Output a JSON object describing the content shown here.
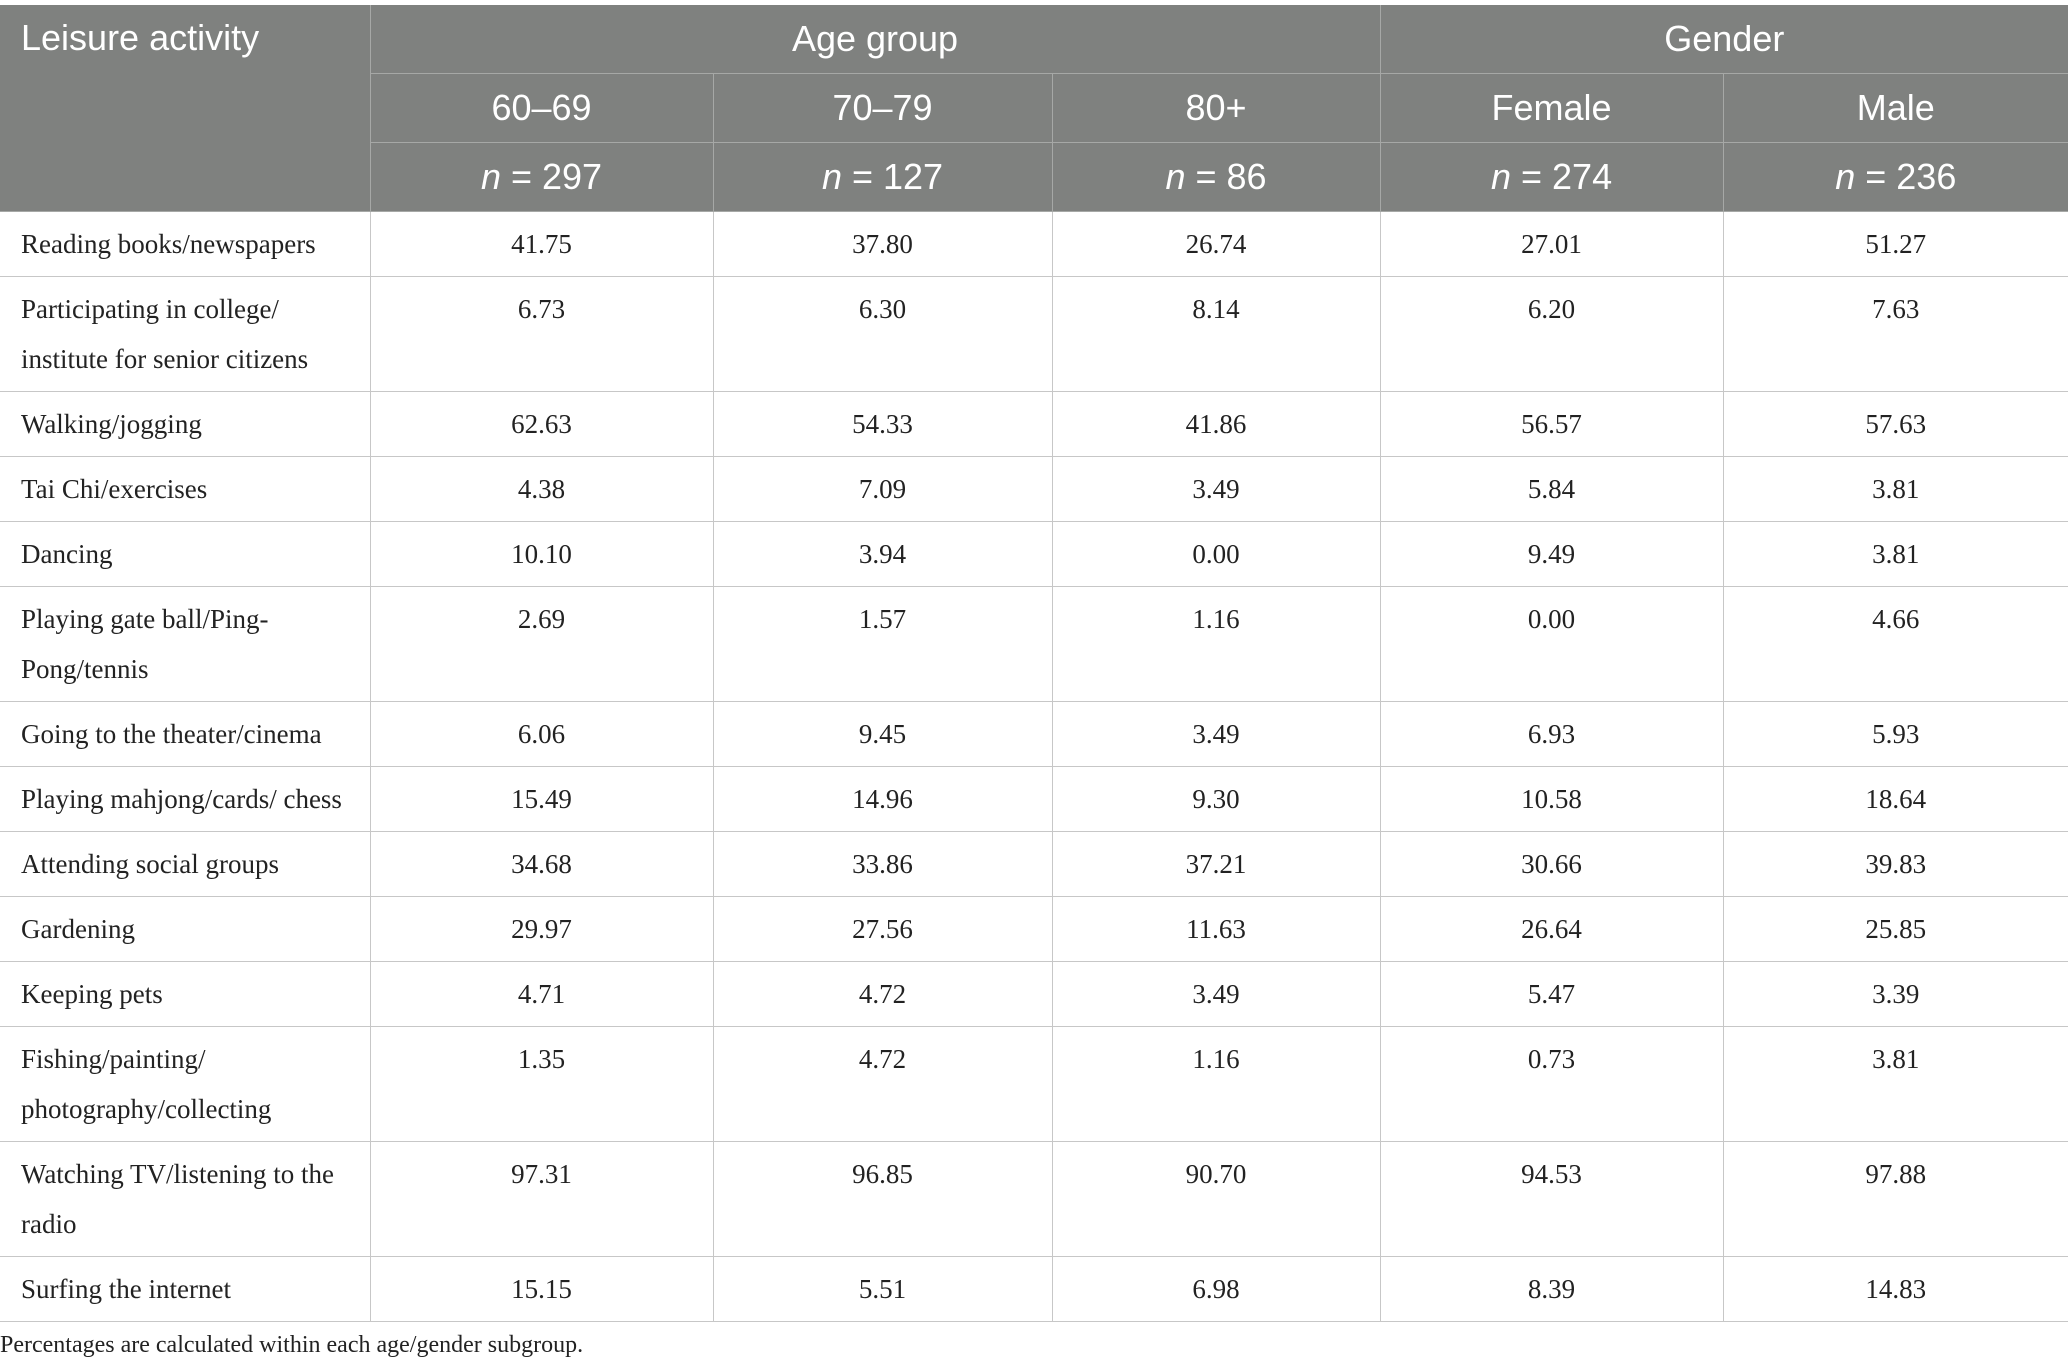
{
  "header": {
    "row_label": "Leisure activity",
    "group_age": "Age group",
    "group_gender": "Gender",
    "columns": [
      {
        "label": "60–69",
        "n_prefix": "n",
        "n_value": " = 297"
      },
      {
        "label": "70–79",
        "n_prefix": "n",
        "n_value": " = 127"
      },
      {
        "label": "80+",
        "n_prefix": "n",
        "n_value": " = 86"
      },
      {
        "label": "Female",
        "n_prefix": "n",
        "n_value": " = 274"
      },
      {
        "label": "Male",
        "n_prefix": "n",
        "n_value": " = 236"
      }
    ]
  },
  "rows": [
    {
      "activity": "Reading books/newspapers",
      "values": [
        "41.75",
        "37.80",
        "26.74",
        "27.01",
        "51.27"
      ]
    },
    {
      "activity": "Participating in college/ institute for senior citizens",
      "values": [
        "6.73",
        "6.30",
        "8.14",
        "6.20",
        "7.63"
      ]
    },
    {
      "activity": "Walking/jogging",
      "values": [
        "62.63",
        "54.33",
        "41.86",
        "56.57",
        "57.63"
      ]
    },
    {
      "activity": "Tai Chi/exercises",
      "values": [
        "4.38",
        "7.09",
        "3.49",
        "5.84",
        "3.81"
      ]
    },
    {
      "activity": "Dancing",
      "values": [
        "10.10",
        "3.94",
        "0.00",
        "9.49",
        "3.81"
      ]
    },
    {
      "activity": "Playing gate ball/Ping-Pong/tennis",
      "values": [
        "2.69",
        "1.57",
        "1.16",
        "0.00",
        "4.66"
      ]
    },
    {
      "activity": "Going to the theater/cinema",
      "values": [
        "6.06",
        "9.45",
        "3.49",
        "6.93",
        "5.93"
      ]
    },
    {
      "activity": "Playing mahjong/cards/ chess",
      "values": [
        "15.49",
        "14.96",
        "9.30",
        "10.58",
        "18.64"
      ]
    },
    {
      "activity": "Attending social groups",
      "values": [
        "34.68",
        "33.86",
        "37.21",
        "30.66",
        "39.83"
      ]
    },
    {
      "activity": "Gardening",
      "values": [
        "29.97",
        "27.56",
        "11.63",
        "26.64",
        "25.85"
      ]
    },
    {
      "activity": "Keeping pets",
      "values": [
        "4.71",
        "4.72",
        "3.49",
        "5.47",
        "3.39"
      ]
    },
    {
      "activity": "Fishing/painting/ photography/collecting",
      "values": [
        "1.35",
        "4.72",
        "1.16",
        "0.73",
        "3.81"
      ]
    },
    {
      "activity": "Watching TV/listening to the radio",
      "values": [
        "97.31",
        "96.85",
        "90.70",
        "94.53",
        "97.88"
      ]
    },
    {
      "activity": "Surfing the internet",
      "values": [
        "15.15",
        "5.51",
        "6.98",
        "8.39",
        "14.83"
      ]
    }
  ],
  "footnote": "Percentages are calculated within each age/gender subgroup."
}
